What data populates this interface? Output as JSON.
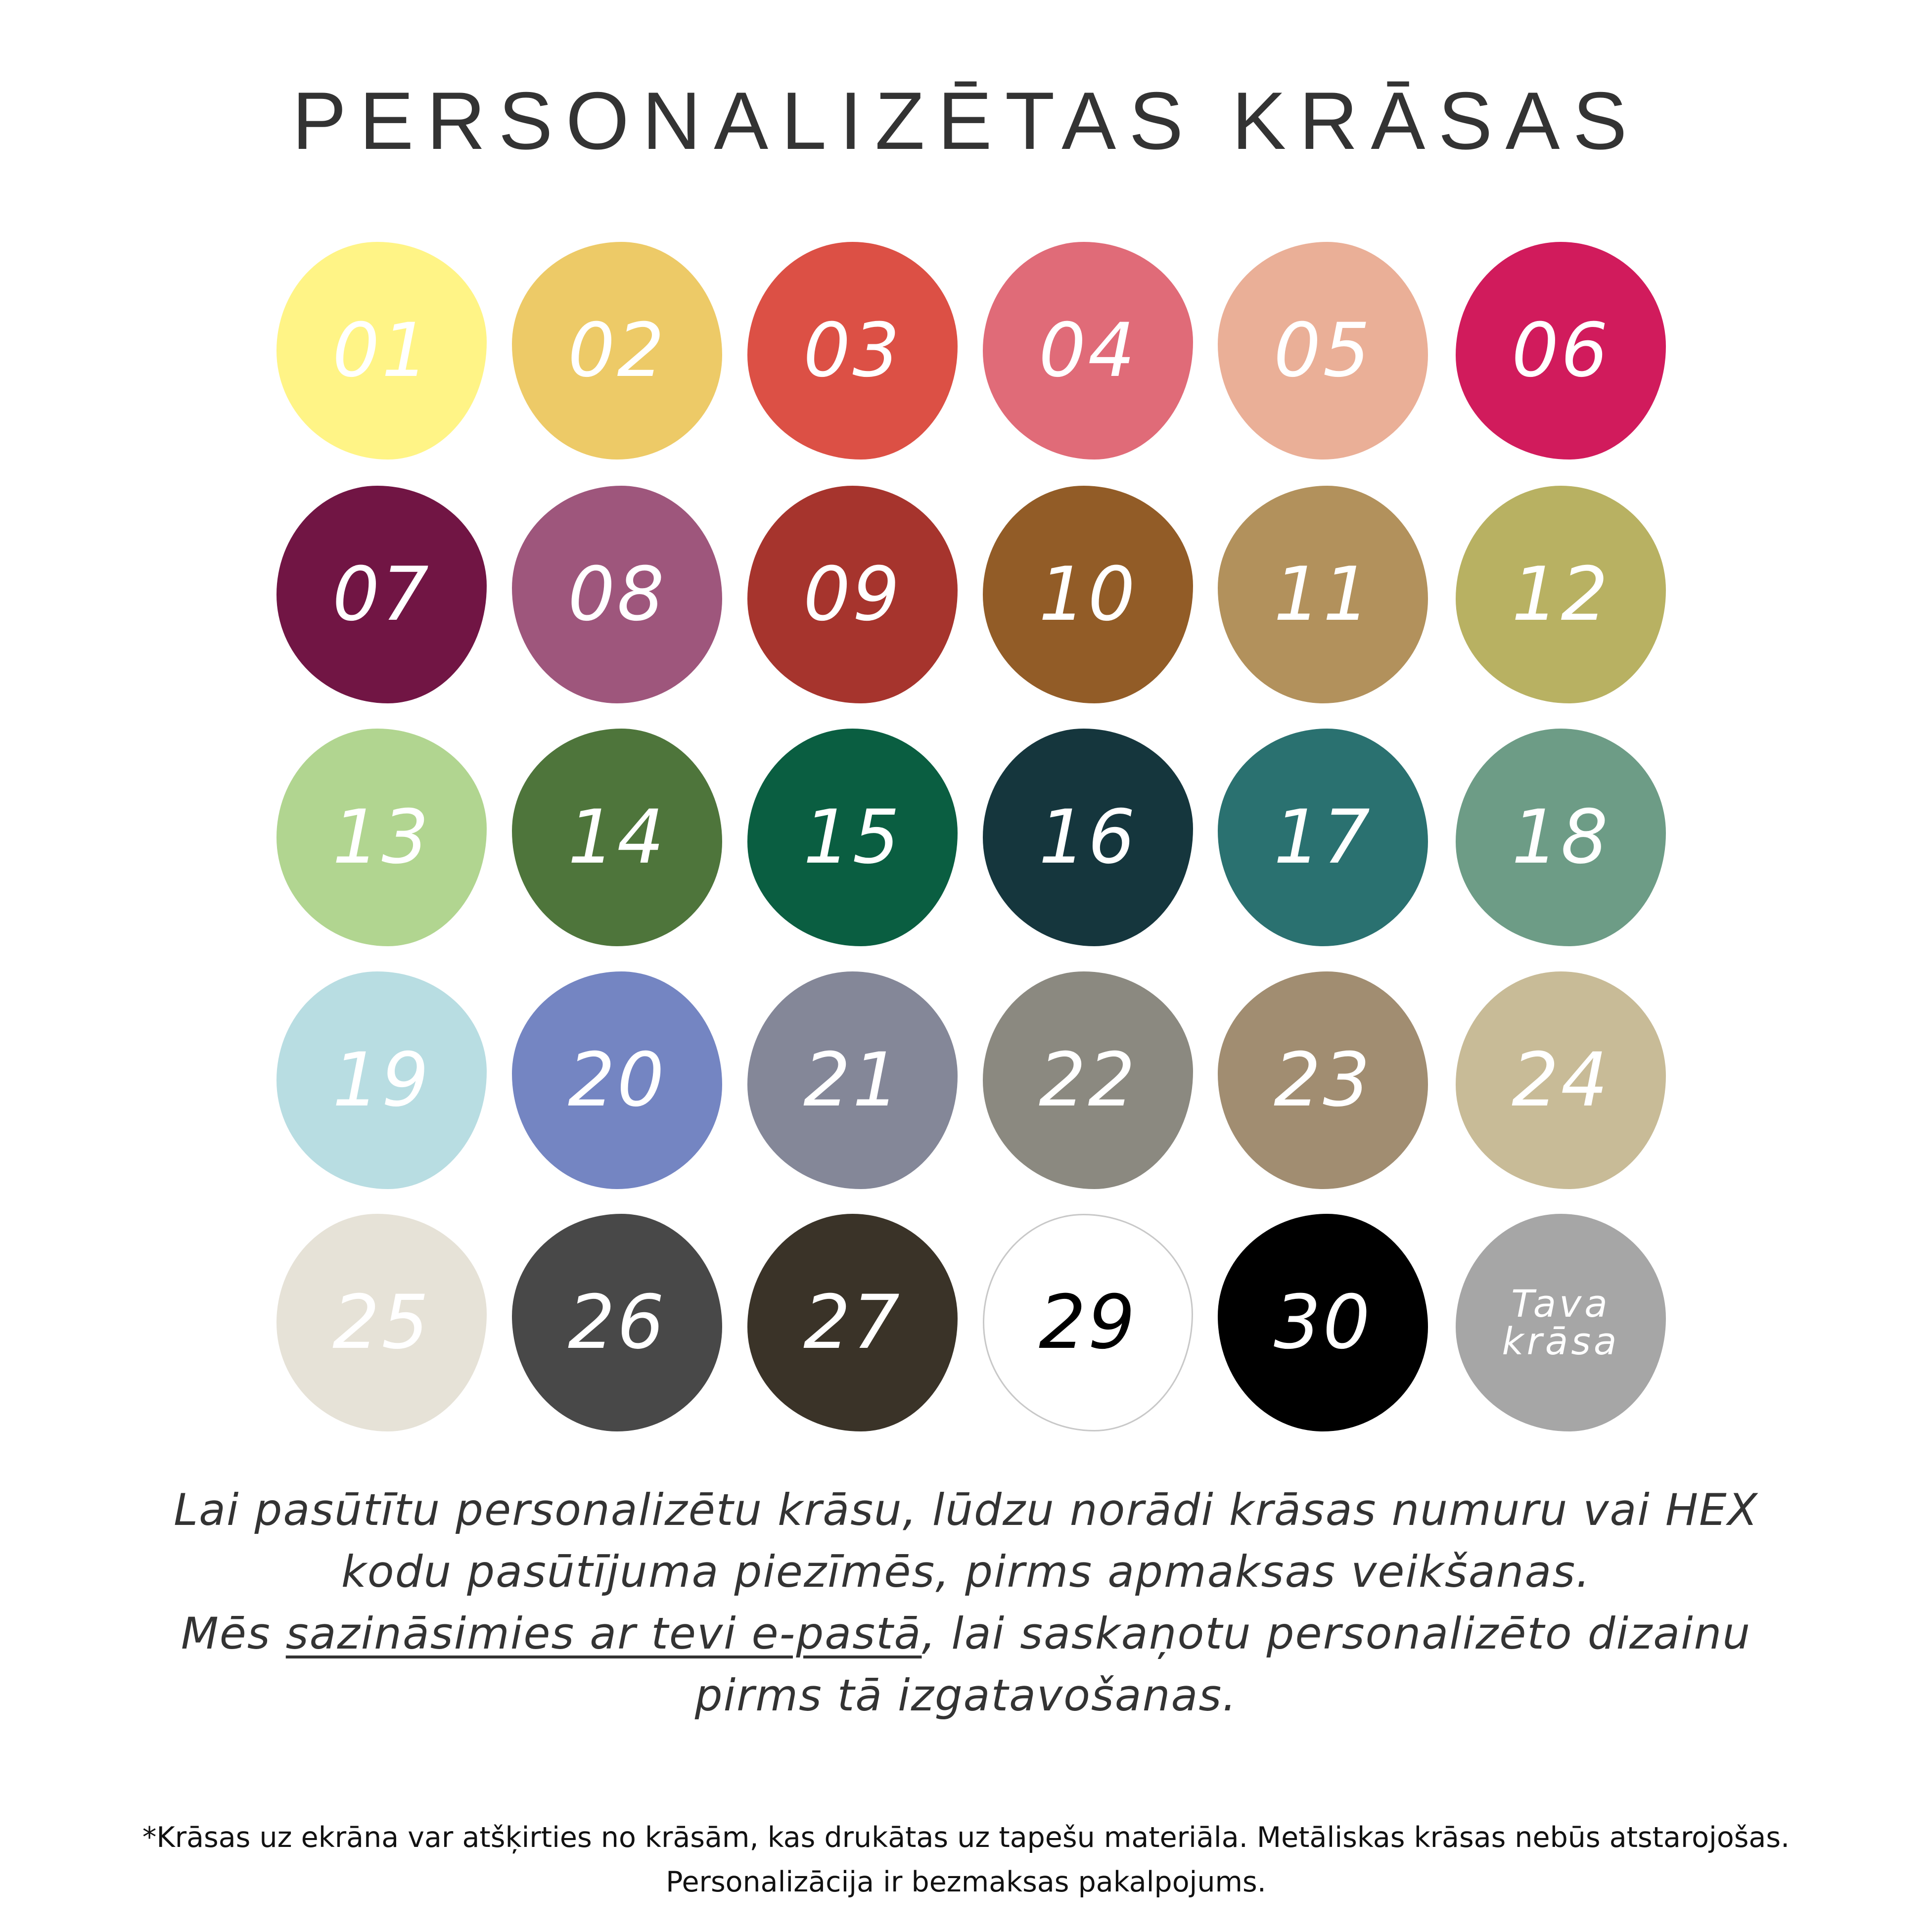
{
  "title": "PERSONALIZĒTAS KRĀSAS",
  "swatches": [
    {
      "label": "01",
      "color": "#FFF486",
      "text": "#ffffff"
    },
    {
      "label": "02",
      "color": "#EDCA67",
      "text": "#ffffff"
    },
    {
      "label": "03",
      "color": "#DC5045",
      "text": "#ffffff"
    },
    {
      "label": "04",
      "color": "#E06B78",
      "text": "#ffffff"
    },
    {
      "label": "05",
      "color": "#EAAF97",
      "text": "#ffffff"
    },
    {
      "label": "06",
      "color": "#D11B5C",
      "text": "#ffffff"
    },
    {
      "label": "07",
      "color": "#711544",
      "text": "#ffffff"
    },
    {
      "label": "08",
      "color": "#9E567C",
      "text": "#ffffff"
    },
    {
      "label": "09",
      "color": "#A6342D",
      "text": "#ffffff"
    },
    {
      "label": "10",
      "color": "#925C27",
      "text": "#ffffff"
    },
    {
      "label": "11",
      "color": "#B2915C",
      "text": "#ffffff"
    },
    {
      "label": "12",
      "color": "#B8B162",
      "text": "#ffffff"
    },
    {
      "label": "13",
      "color": "#B1D590",
      "text": "#ffffff"
    },
    {
      "label": "14",
      "color": "#4E753B",
      "text": "#ffffff"
    },
    {
      "label": "15",
      "color": "#0A5E41",
      "text": "#ffffff"
    },
    {
      "label": "16",
      "color": "#15363D",
      "text": "#ffffff"
    },
    {
      "label": "17",
      "color": "#2A7170",
      "text": "#ffffff"
    },
    {
      "label": "18",
      "color": "#6D9C86",
      "text": "#ffffff"
    },
    {
      "label": "19",
      "color": "#B8DDE2",
      "text": "#ffffff"
    },
    {
      "label": "20",
      "color": "#7485C2",
      "text": "#ffffff"
    },
    {
      "label": "21",
      "color": "#848798",
      "text": "#ffffff"
    },
    {
      "label": "22",
      "color": "#8B8980",
      "text": "#ffffff"
    },
    {
      "label": "23",
      "color": "#A18D71",
      "text": "#ffffff"
    },
    {
      "label": "24",
      "color": "#C8BB97",
      "text": "#ffffff"
    },
    {
      "label": "25",
      "color": "#E6E2D7",
      "text": "#ffffff"
    },
    {
      "label": "26",
      "color": "#484848",
      "text": "#ffffff"
    },
    {
      "label": "27",
      "color": "#3A3328",
      "text": "#ffffff"
    },
    {
      "label": "29",
      "color": "#FFFFFF",
      "text": "#000000",
      "outline": "#c8c8c8"
    },
    {
      "label": "30",
      "color": "#000000",
      "text": "#ffffff"
    },
    {
      "label": "Tava krāsa",
      "color": "#A6A6A6",
      "text": "#ffffff",
      "small": true
    }
  ],
  "instructions": {
    "line1": "Lai pasūtītu personalizētu krāsu, lūdzu norādi krāsas numuru vai HEX",
    "line2": "kodu pasūtījuma piezīmēs, pirms apmaksas veikšanas.",
    "line3_pre": "Mēs ",
    "line3_link": "sazināsimies ar tevi e-pastā",
    "line3_post": ", lai saskaņotu personalizēto dizainu",
    "line4": "pirms tā izgatavošanas."
  },
  "footer": {
    "line1": "*Krāsas uz ekrāna var atšķirties no krāsām, kas drukātas uz tapešu materiāla. Metāliskas krāsas nebūs atstarojošas.",
    "line2": "Personalizācija ir bezmaksas pakalpojums."
  }
}
